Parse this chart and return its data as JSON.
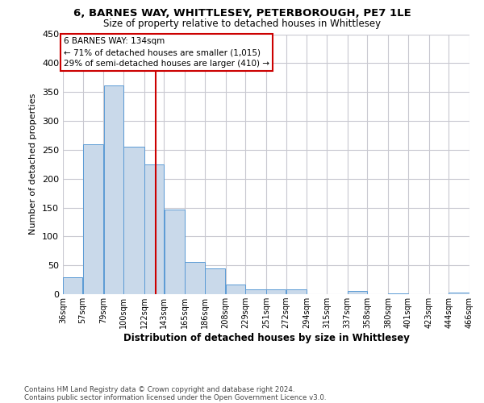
{
  "title1": "6, BARNES WAY, WHITTLESEY, PETERBOROUGH, PE7 1LE",
  "title2": "Size of property relative to detached houses in Whittlesey",
  "xlabel": "Distribution of detached houses by size in Whittlesey",
  "ylabel": "Number of detached properties",
  "footnote1": "Contains HM Land Registry data © Crown copyright and database right 2024.",
  "footnote2": "Contains public sector information licensed under the Open Government Licence v3.0.",
  "annotation_line1": "6 BARNES WAY: 134sqm",
  "annotation_line2": "← 71% of detached houses are smaller (1,015)",
  "annotation_line3": "29% of semi-detached houses are larger (410) →",
  "property_size": 134,
  "bins": [
    36,
    57,
    79,
    100,
    122,
    143,
    165,
    186,
    208,
    229,
    251,
    272,
    294,
    315,
    337,
    358,
    380,
    401,
    423,
    444,
    466
  ],
  "values": [
    30,
    260,
    362,
    255,
    225,
    147,
    56,
    44,
    17,
    9,
    9,
    8,
    0,
    0,
    5,
    0,
    2,
    0,
    0,
    3
  ],
  "bar_color": "#c9d9ea",
  "bar_edge_color": "#5b9bd5",
  "vline_color": "#cc0000",
  "grid_color": "#c8c8d0",
  "background_color": "#ffffff",
  "ylim": [
    0,
    450
  ],
  "yticks": [
    0,
    50,
    100,
    150,
    200,
    250,
    300,
    350,
    400,
    450
  ]
}
